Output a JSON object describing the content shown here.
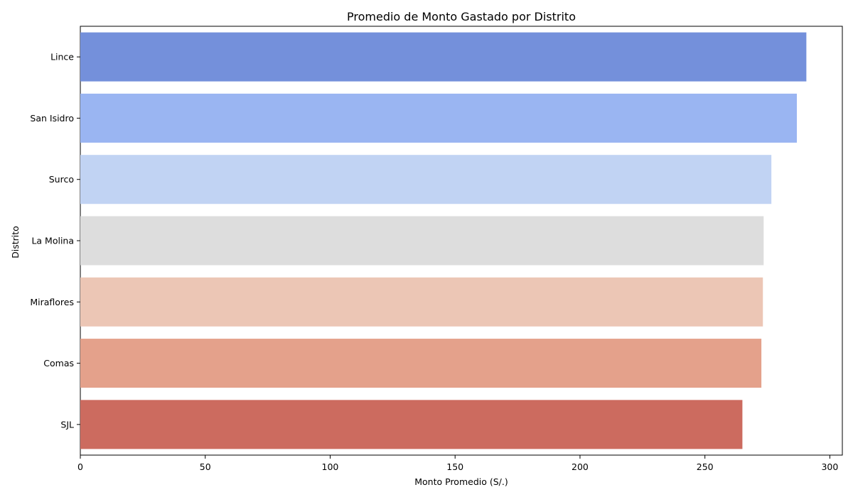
{
  "chart_data": {
    "type": "bar",
    "orientation": "horizontal",
    "title": "Promedio de Monto Gastado por Distrito",
    "xlabel": "Monto Promedio (S/.)",
    "ylabel": "Distrito",
    "categories": [
      "Lince",
      "San Isidro",
      "Surco",
      "La Molina",
      "Miraflores",
      "Comas",
      "SJL"
    ],
    "values": [
      290.6,
      286.8,
      276.6,
      273.5,
      273.2,
      272.6,
      265.0
    ],
    "colors": [
      "#7490db",
      "#9ab5f2",
      "#c1d3f3",
      "#dddddd",
      "#ecc6b5",
      "#e4a18b",
      "#cc6b5f"
    ],
    "xlim": [
      0,
      305
    ],
    "xticks": [
      0,
      50,
      100,
      150,
      200,
      250,
      300
    ],
    "grid": false,
    "legend": "none"
  }
}
